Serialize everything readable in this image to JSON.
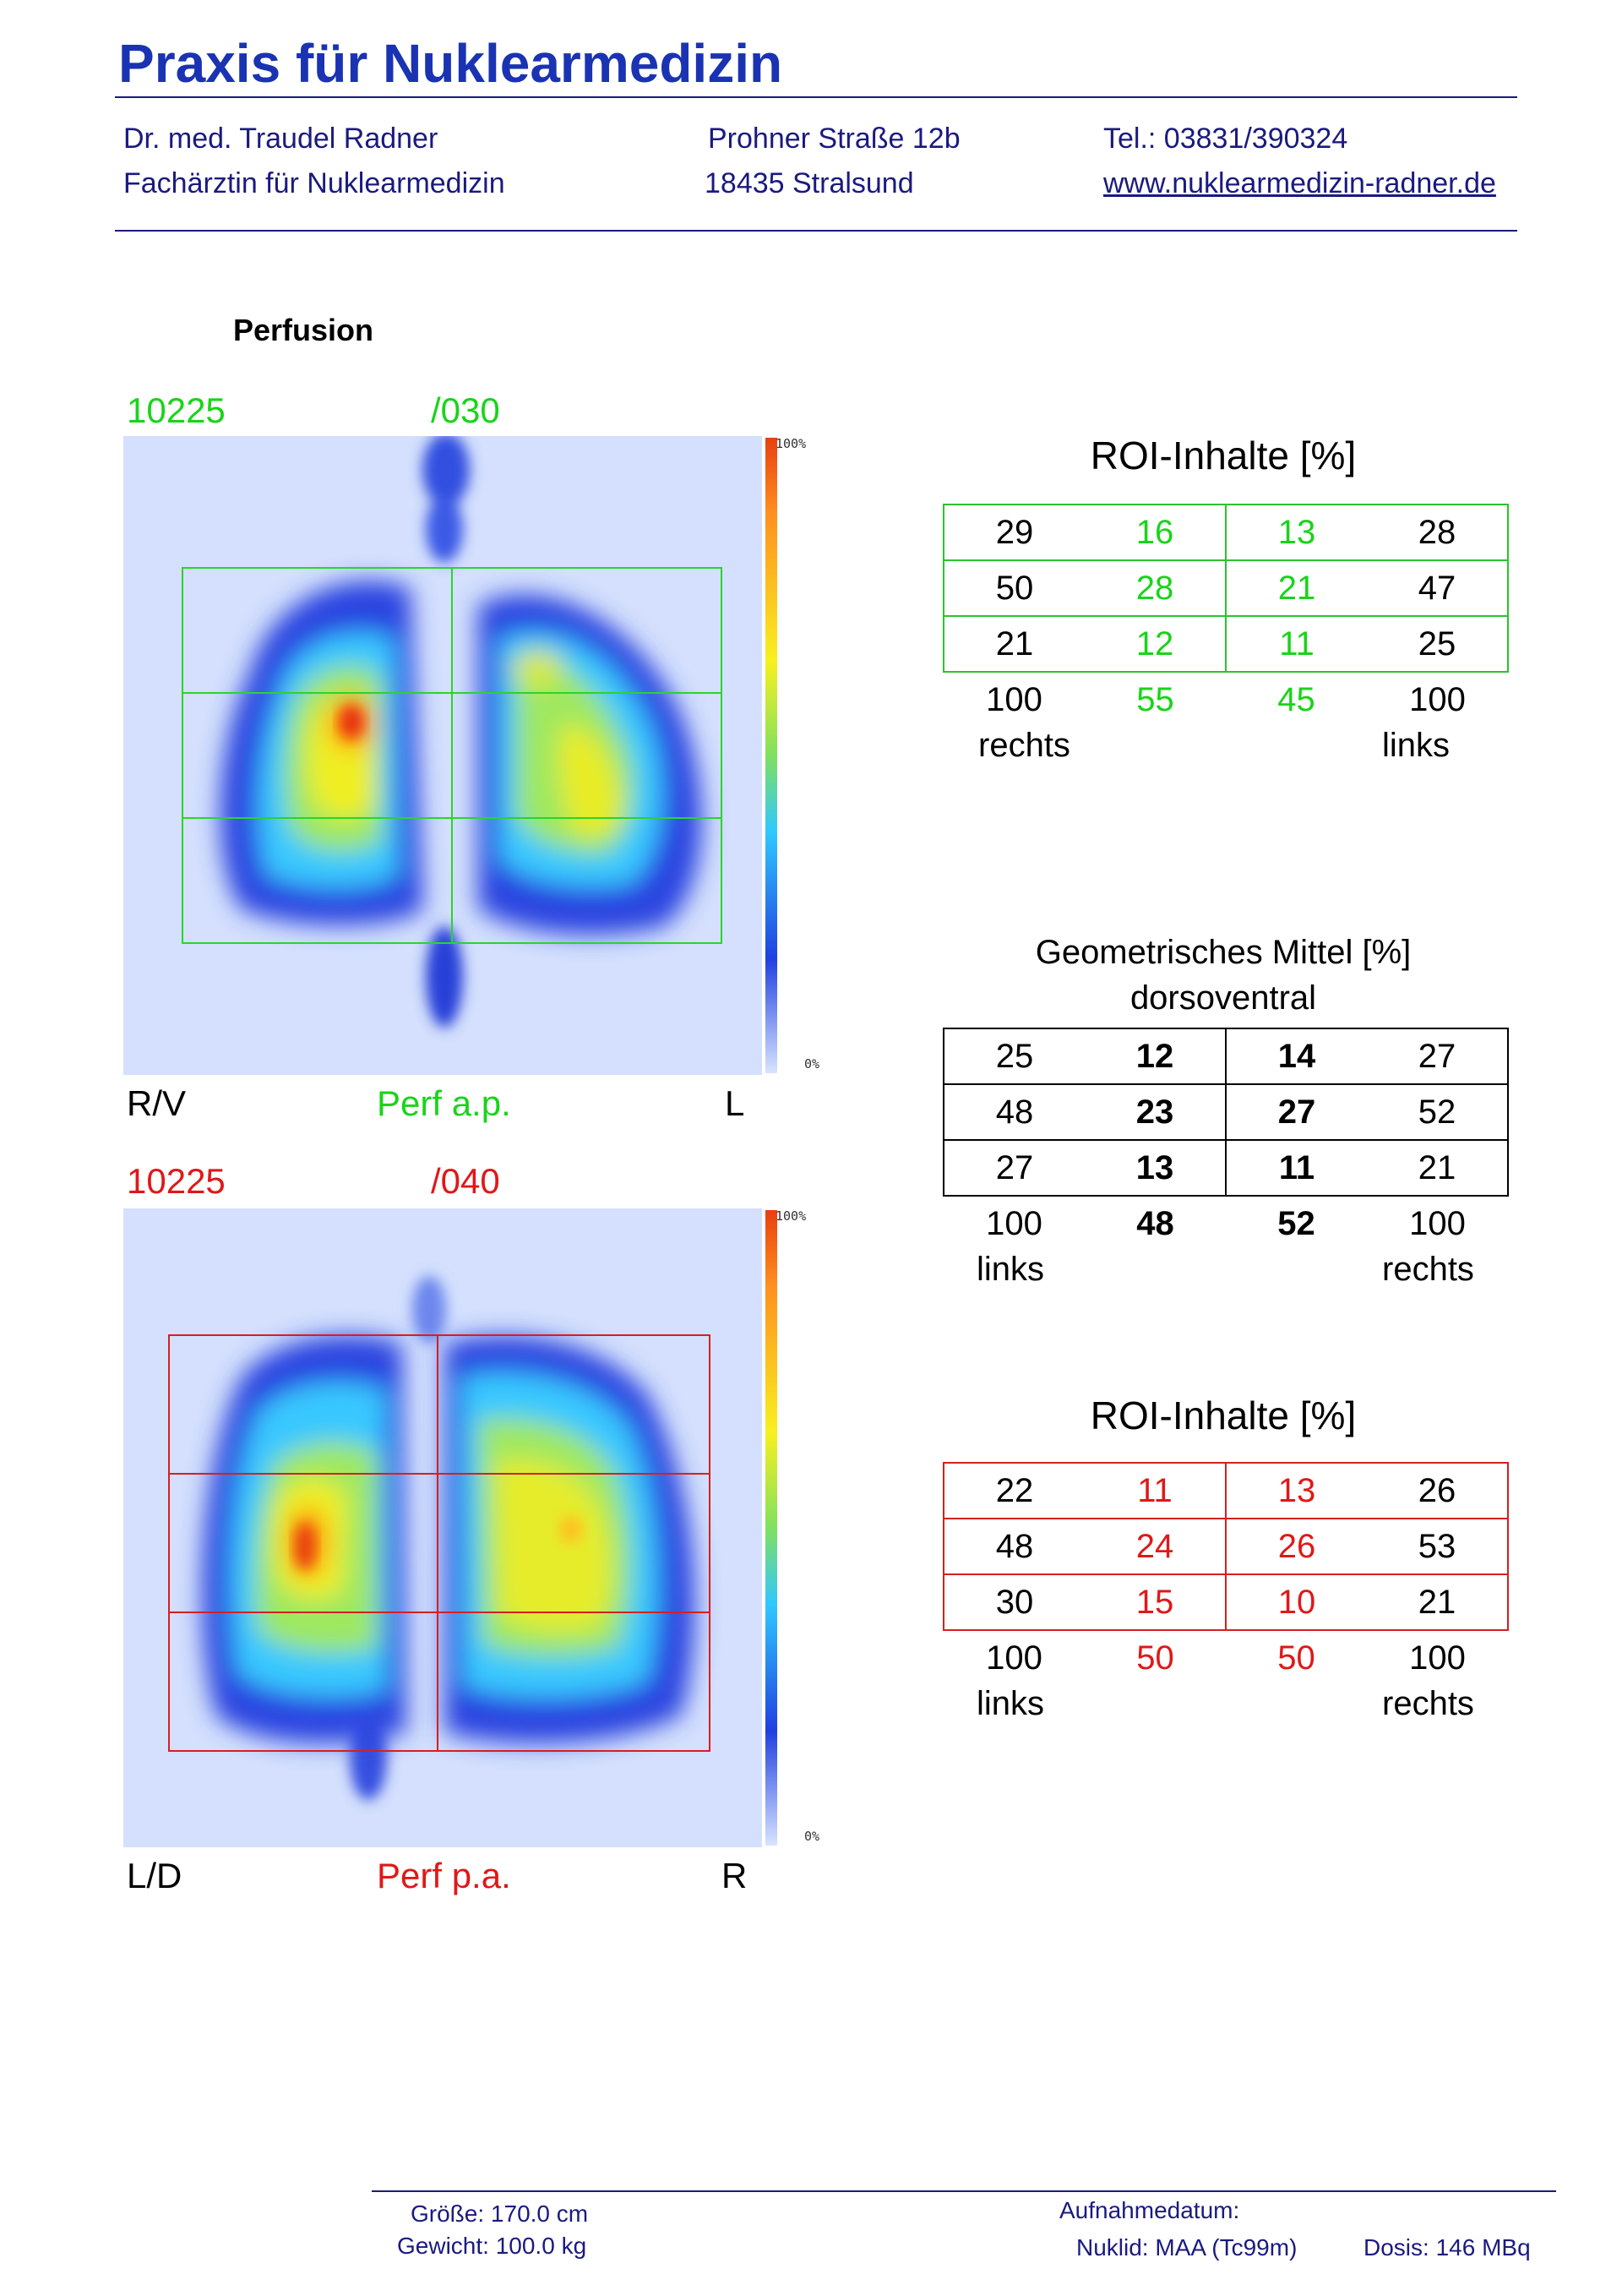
{
  "header": {
    "practice_title": "Praxis für Nuklearmedizin",
    "doctor_name": "Dr. med. Traudel Radner",
    "doctor_title": "Fachärztin für Nuklearmedizin",
    "street": "Prohner Straße 12b",
    "city": "18435 Stralsund",
    "phone": "Tel.: 03831/390324",
    "website": "www.nuklearmedizin-radner.de"
  },
  "section_title": "Perfusion",
  "images": {
    "ap": {
      "patient_id": "10225",
      "series": "/030",
      "left_label": "R/V",
      "center_label": "Perf a.p.",
      "right_label": "L",
      "scale_max": "100%",
      "scale_min": "0%",
      "color": "#19d419"
    },
    "pa": {
      "patient_id": "10225",
      "series": "/040",
      "left_label": "L/D",
      "center_label": "Perf p.a.",
      "right_label": "R",
      "scale_max": "100%",
      "scale_min": "0%",
      "color": "#e01818"
    }
  },
  "roi_ap": {
    "title": "ROI-Inhalte [%]",
    "rows": [
      [
        "29",
        "16",
        "13",
        "28"
      ],
      [
        "50",
        "28",
        "21",
        "47"
      ],
      [
        "21",
        "12",
        "11",
        "25"
      ]
    ],
    "totals": [
      "100",
      "55",
      "45",
      "100"
    ],
    "side_left": "rechts",
    "side_right": "links"
  },
  "geo_mean": {
    "title": "Geometrisches Mittel [%]",
    "subtitle": "dorsoventral",
    "rows": [
      [
        "25",
        "12",
        "14",
        "27"
      ],
      [
        "48",
        "23",
        "27",
        "52"
      ],
      [
        "27",
        "13",
        "11",
        "21"
      ]
    ],
    "totals": [
      "100",
      "48",
      "52",
      "100"
    ],
    "side_left": "links",
    "side_right": "rechts"
  },
  "roi_pa": {
    "title": "ROI-Inhalte [%]",
    "rows": [
      [
        "22",
        "11",
        "13",
        "26"
      ],
      [
        "48",
        "24",
        "26",
        "53"
      ],
      [
        "30",
        "15",
        "10",
        "21"
      ]
    ],
    "totals": [
      "100",
      "50",
      "50",
      "100"
    ],
    "side_left": "links",
    "side_right": "rechts"
  },
  "footer": {
    "height_label": "Größe:",
    "height_value": "170.0 cm",
    "weight_label": "Gewicht:",
    "weight_value": "100.0 kg",
    "date_label": "Aufnahmedatum:",
    "nuclide_label": "Nuklid:",
    "nuclide_value": "MAA (Tc99m)",
    "dose_label": "Dosis:",
    "dose_value": "146 MBq"
  }
}
